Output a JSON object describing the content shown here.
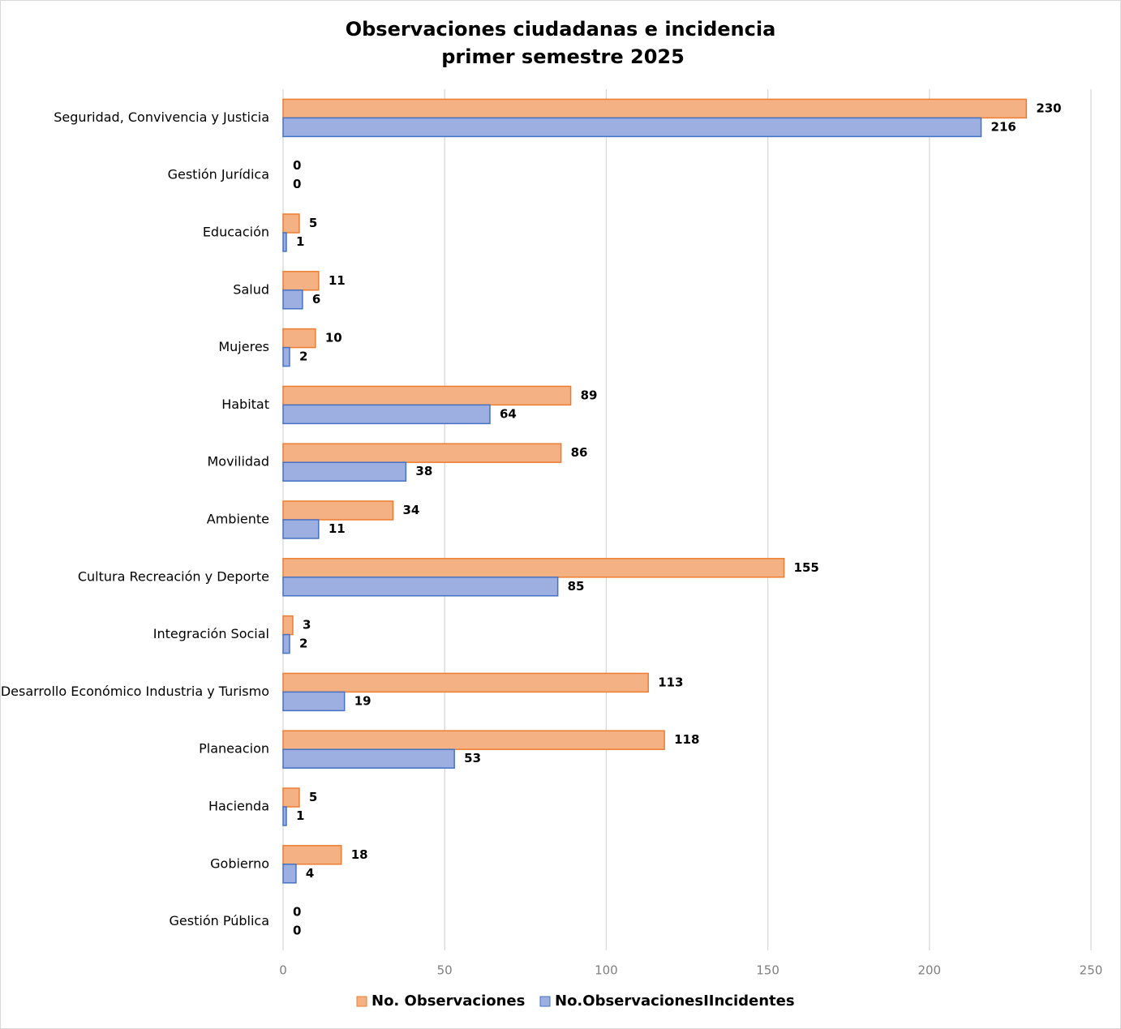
{
  "chart_data": {
    "type": "hbar",
    "title": "Observaciones ciudadanas e incidencia",
    "subtitle": "primer semestre 2025",
    "categories": [
      "Seguridad, Convivencia y Justicia",
      "Gestión Jurídica",
      "Educación",
      "Salud",
      "Mujeres",
      "Habitat",
      "Movilidad",
      "Ambiente",
      "Cultura Recreación y Deporte",
      "Integración Social",
      "Desarrollo Económico Industria y Turismo",
      "Planeacion",
      "Hacienda",
      "Gobierno",
      "Gestión Pública"
    ],
    "series": [
      {
        "name": "No. Observaciones",
        "color": "#f4b183",
        "stroke": "#ed7d31",
        "values": [
          230,
          0,
          5,
          11,
          10,
          89,
          86,
          34,
          155,
          3,
          113,
          118,
          5,
          18,
          0
        ]
      },
      {
        "name": "No.ObservacionesIIncidentes",
        "color": "#9dafe0",
        "stroke": "#4472c4",
        "values": [
          216,
          0,
          1,
          6,
          2,
          64,
          38,
          11,
          85,
          2,
          19,
          53,
          1,
          4,
          0
        ]
      }
    ],
    "xlim": [
      0,
      250
    ],
    "xticks": [
      0,
      50,
      100,
      150,
      200,
      250
    ],
    "grid": true,
    "legend": "bottom"
  }
}
